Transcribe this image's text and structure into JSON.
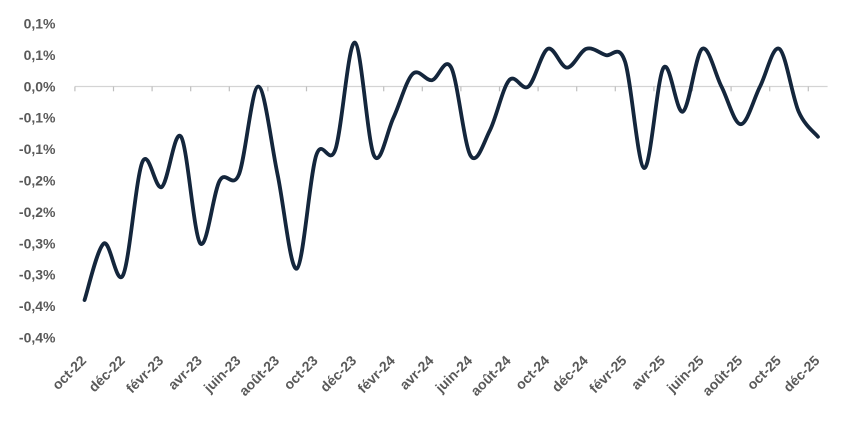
{
  "chart_data": {
    "type": "line",
    "title": "",
    "legend": "none",
    "grid": "single horizontal gridline at 0 with tick marks, no plot border",
    "unit": "%",
    "categories": [
      "oct-22",
      "nov-22",
      "déc-22",
      "janv-23",
      "févr-23",
      "mars-23",
      "avr-23",
      "mai-23",
      "juin-23",
      "juil-23",
      "août-23",
      "sept-23",
      "oct-23",
      "nov-23",
      "déc-23",
      "janv-24",
      "févr-24",
      "mars-24",
      "avr-24",
      "mai-24",
      "juin-24",
      "juil-24",
      "août-24",
      "sept-24",
      "oct-24",
      "nov-24",
      "déc-24",
      "janv-25",
      "févr-25",
      "mars-25",
      "avr-25",
      "mai-25",
      "juin-25",
      "juil-25",
      "août-25",
      "sept-25",
      "oct-25",
      "nov-25",
      "déc-25"
    ],
    "values": [
      -0.34,
      -0.25,
      -0.3,
      -0.12,
      -0.16,
      -0.08,
      -0.25,
      -0.15,
      -0.14,
      0.0,
      -0.14,
      -0.29,
      -0.11,
      -0.1,
      0.07,
      -0.11,
      -0.05,
      0.02,
      0.01,
      0.03,
      -0.11,
      -0.07,
      0.01,
      0.0,
      0.06,
      0.03,
      0.06,
      0.05,
      0.04,
      -0.13,
      0.03,
      -0.04,
      0.06,
      0.0,
      -0.06,
      0.0,
      0.06,
      -0.04,
      -0.08
    ],
    "x_tick_labels": [
      "oct-22",
      "déc-22",
      "févr-23",
      "avr-23",
      "juin-23",
      "août-23",
      "oct-23",
      "déc-23",
      "févr-24",
      "avr-24",
      "juin-24",
      "août-24",
      "oct-24",
      "déc-24",
      "févr-25",
      "avr-25",
      "juin-25",
      "août-25",
      "oct-25",
      "déc-25"
    ],
    "x_label_interval_months": 2,
    "y_ticks": [
      {
        "value": 0.1,
        "label": "0,1%"
      },
      {
        "value": 0.05,
        "label": "0,1%"
      },
      {
        "value": 0.0,
        "label": "0,0%"
      },
      {
        "value": -0.05,
        "label": "-0,1%"
      },
      {
        "value": -0.1,
        "label": "-0,1%"
      },
      {
        "value": -0.15,
        "label": "-0,2%"
      },
      {
        "value": -0.2,
        "label": "-0,2%"
      },
      {
        "value": -0.25,
        "label": "-0,3%"
      },
      {
        "value": -0.3,
        "label": "-0,3%"
      },
      {
        "value": -0.35,
        "label": "-0,4%"
      },
      {
        "value": -0.4,
        "label": "-0,4%"
      }
    ],
    "ylim": [
      -0.4,
      0.1
    ],
    "line_smoothed": true,
    "colors": {
      "line": "#14263C",
      "axis_text": "#595959",
      "axis_line": "#D4D4D4",
      "tick": "#BFBFBF",
      "background": "#FFFFFF"
    }
  }
}
